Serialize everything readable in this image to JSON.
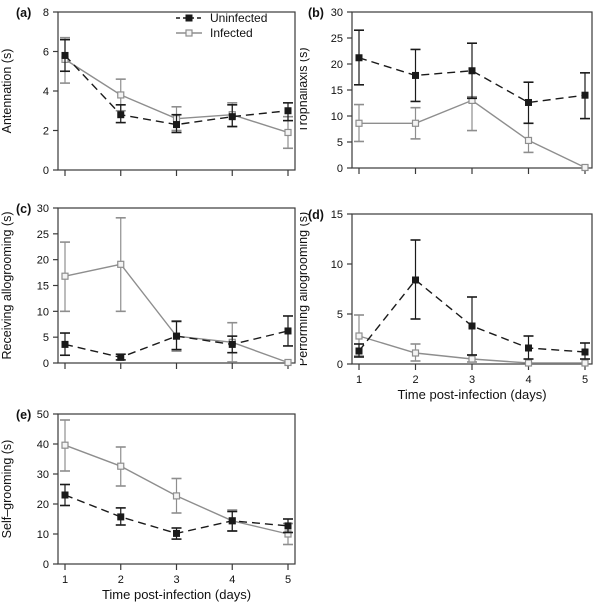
{
  "figure": {
    "background": "#ffffff",
    "frame_color": "#3a3a3a",
    "x_axis_label": "Time post-infection (days)",
    "x_ticks": [
      "1",
      "2",
      "3",
      "4",
      "5"
    ]
  },
  "legend": {
    "items": [
      {
        "label": "Uninfected",
        "color": "#1a1a1a",
        "line": "dashed",
        "marker": "filled-square"
      },
      {
        "label": "Infected",
        "color": "#8e8e8e",
        "line": "solid",
        "marker": "open-square"
      }
    ]
  },
  "chart_data": [
    {
      "type": "line",
      "panel_label": "(a)",
      "ylabel": "Antennation (s)",
      "xlabel": "",
      "ylim": [
        0,
        8
      ],
      "yticks": [
        0,
        2,
        4,
        6,
        8
      ],
      "x": [
        1,
        2,
        3,
        4,
        5
      ],
      "show_x_tick_labels": false,
      "show_legend": true,
      "grid": false,
      "series": [
        {
          "name": "Uninfected",
          "values": [
            5.8,
            2.8,
            2.3,
            2.7,
            3.0
          ],
          "err_low": [
            5.0,
            2.4,
            1.9,
            2.2,
            2.5
          ],
          "err_high": [
            6.6,
            3.3,
            2.8,
            3.3,
            3.4
          ]
        },
        {
          "name": "Infected",
          "values": [
            5.6,
            3.8,
            2.6,
            2.8,
            1.9
          ],
          "err_low": [
            4.4,
            3.0,
            2.0,
            2.2,
            1.1
          ],
          "err_high": [
            6.7,
            4.6,
            3.2,
            3.4,
            2.7
          ]
        }
      ]
    },
    {
      "type": "line",
      "panel_label": "(b)",
      "ylabel": "Trophallaxis (s)",
      "xlabel": "",
      "ylim": [
        0,
        30
      ],
      "yticks": [
        0,
        5,
        10,
        15,
        20,
        25,
        30
      ],
      "x": [
        1,
        2,
        3,
        4,
        5
      ],
      "show_x_tick_labels": false,
      "show_legend": false,
      "grid": false,
      "series": [
        {
          "name": "Uninfected",
          "values": [
            21.2,
            17.8,
            18.7,
            12.6,
            14.0
          ],
          "err_low": [
            16.0,
            12.8,
            13.4,
            8.6,
            9.5
          ],
          "err_high": [
            26.5,
            22.8,
            24.0,
            16.5,
            18.3
          ]
        },
        {
          "name": "Infected",
          "values": [
            8.6,
            8.6,
            13.0,
            5.3,
            0.1
          ],
          "err_low": [
            5.1,
            5.6,
            7.2,
            3.0,
            0.1
          ],
          "err_high": [
            12.2,
            11.6,
            13.7,
            8.6,
            0.1
          ]
        }
      ]
    },
    {
      "type": "line",
      "panel_label": "(c)",
      "ylabel": "Receiving allogrooming (s)",
      "xlabel": "",
      "ylim": [
        0,
        30
      ],
      "yticks": [
        0,
        5,
        10,
        15,
        20,
        25,
        30
      ],
      "x": [
        1,
        2,
        3,
        4,
        5
      ],
      "show_x_tick_labels": false,
      "show_legend": false,
      "grid": false,
      "series": [
        {
          "name": "Uninfected",
          "values": [
            3.6,
            1.1,
            5.2,
            3.6,
            6.2
          ],
          "err_low": [
            1.5,
            0.6,
            2.6,
            2.0,
            3.3
          ],
          "err_high": [
            5.8,
            1.7,
            8.1,
            5.2,
            9.1
          ]
        },
        {
          "name": "Infected",
          "values": [
            16.8,
            19.1,
            5.2,
            4.0,
            0.1
          ],
          "err_low": [
            10.0,
            10.0,
            2.3,
            0.2,
            0.1
          ],
          "err_high": [
            23.4,
            28.1,
            8.0,
            7.8,
            0.1
          ]
        }
      ]
    },
    {
      "type": "line",
      "panel_label": "(d)",
      "ylabel": "Performing allogrooming (s)",
      "xlabel": "Time post-infection (days)",
      "ylim": [
        0,
        15
      ],
      "yticks": [
        0,
        5,
        10,
        15
      ],
      "x": [
        1,
        2,
        3,
        4,
        5
      ],
      "show_x_tick_labels": true,
      "show_legend": false,
      "grid": false,
      "series": [
        {
          "name": "Uninfected",
          "values": [
            1.3,
            8.4,
            3.8,
            1.6,
            1.2
          ],
          "err_low": [
            0.7,
            4.5,
            0.9,
            0.5,
            0.5
          ],
          "err_high": [
            2.0,
            12.4,
            6.7,
            2.8,
            2.1
          ]
        },
        {
          "name": "Infected",
          "values": [
            2.8,
            1.1,
            0.5,
            0.1,
            0.1
          ],
          "err_low": [
            0.8,
            0.3,
            0.2,
            0.1,
            0.1
          ],
          "err_high": [
            4.9,
            2.0,
            0.9,
            0.1,
            0.1
          ]
        }
      ]
    },
    {
      "type": "line",
      "panel_label": "(e)",
      "ylabel": "Self–grooming (s)",
      "xlabel": "Time post-infection (days)",
      "ylim": [
        0,
        50
      ],
      "yticks": [
        0,
        10,
        20,
        30,
        40,
        50
      ],
      "x": [
        1,
        2,
        3,
        4,
        5
      ],
      "show_x_tick_labels": true,
      "show_legend": false,
      "grid": false,
      "series": [
        {
          "name": "Uninfected",
          "values": [
            23.0,
            15.7,
            10.2,
            14.4,
            12.7
          ],
          "err_low": [
            19.5,
            13.0,
            8.3,
            11.0,
            10.5
          ],
          "err_high": [
            26.5,
            18.7,
            12.0,
            17.5,
            15.0
          ]
        },
        {
          "name": "Infected",
          "values": [
            39.6,
            32.6,
            22.7,
            14.4,
            10.0
          ],
          "err_low": [
            31.0,
            26.0,
            17.0,
            11.0,
            6.5
          ],
          "err_high": [
            48.0,
            39.0,
            28.5,
            18.0,
            13.5
          ]
        }
      ]
    }
  ]
}
